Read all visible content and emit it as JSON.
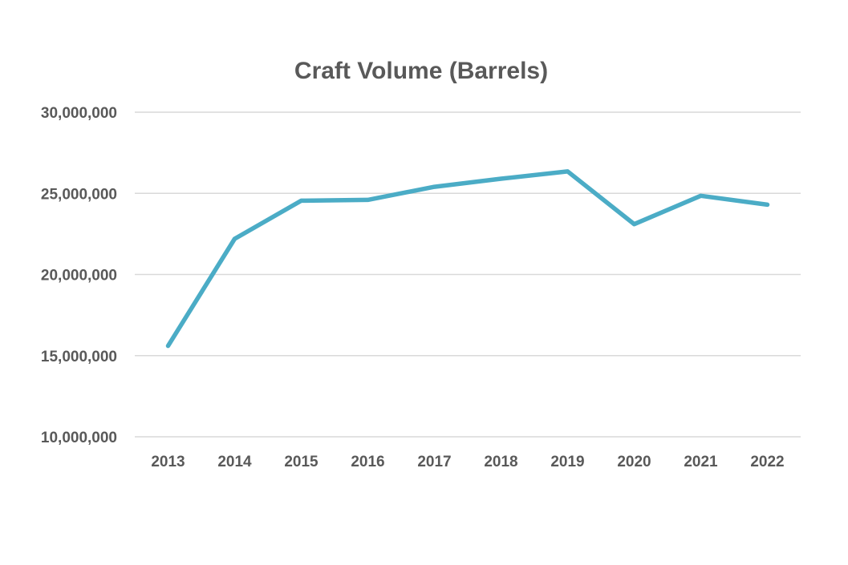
{
  "chart_data": {
    "type": "line",
    "title": "Craft Volume (Barrels)",
    "xlabel": "",
    "ylabel": "",
    "categories": [
      "2013",
      "2014",
      "2015",
      "2016",
      "2017",
      "2018",
      "2019",
      "2020",
      "2021",
      "2022"
    ],
    "series": [
      {
        "values": [
          15600000,
          22200000,
          24550000,
          24600000,
          25400000,
          25900000,
          26350000,
          23100000,
          24850000,
          24300000
        ],
        "color": "#4bacc6"
      }
    ],
    "ylim": [
      10000000,
      30000000
    ],
    "yticks": [
      {
        "value": 10000000,
        "label": "10,000,000"
      },
      {
        "value": 15000000,
        "label": "15,000,000"
      },
      {
        "value": 20000000,
        "label": "20,000,000"
      },
      {
        "value": 25000000,
        "label": "25,000,000"
      },
      {
        "value": 30000000,
        "label": "30,000,000"
      }
    ],
    "grid": true,
    "legend": "none"
  }
}
